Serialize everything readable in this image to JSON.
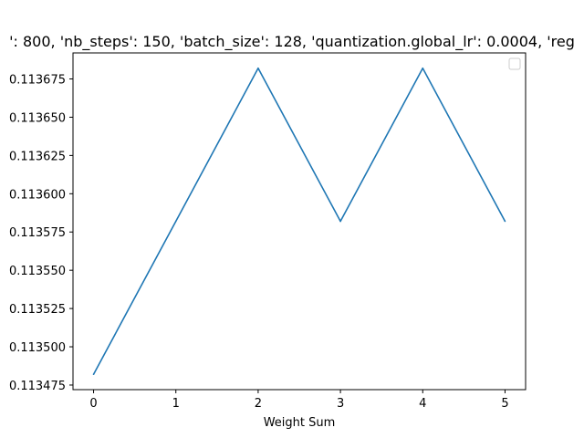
{
  "chart_data": {
    "type": "line",
    "title": "': 800, 'nb_steps': 150, 'batch_size': 128, 'quantization.global_lr': 0.0004, 'reg",
    "xlabel": "Weight Sum",
    "ylabel": "",
    "x": [
      0,
      1,
      2,
      3,
      4,
      5
    ],
    "series": [
      {
        "values": [
          0.113482,
          0.113582,
          0.113682,
          0.113582,
          0.113682,
          0.113582
        ],
        "color": "#1f77b4"
      }
    ],
    "xlim": [
      -0.25,
      5.25
    ],
    "ylim": [
      0.113472,
      0.113692
    ],
    "xticks": [
      0,
      1,
      2,
      3,
      4,
      5
    ],
    "xtick_labels": [
      "0",
      "1",
      "2",
      "3",
      "4",
      "5"
    ],
    "yticks": [
      0.113475,
      0.1135,
      0.113525,
      0.11355,
      0.113575,
      0.1136,
      0.113625,
      0.11365,
      0.113675
    ],
    "ytick_labels": [
      "0.113475",
      "0.113500",
      "0.113525",
      "0.113550",
      "0.113575",
      "0.113600",
      "0.113625",
      "0.113650",
      "0.113675"
    ],
    "grid": false,
    "legend": {
      "placement": "top-right",
      "entries": []
    }
  }
}
